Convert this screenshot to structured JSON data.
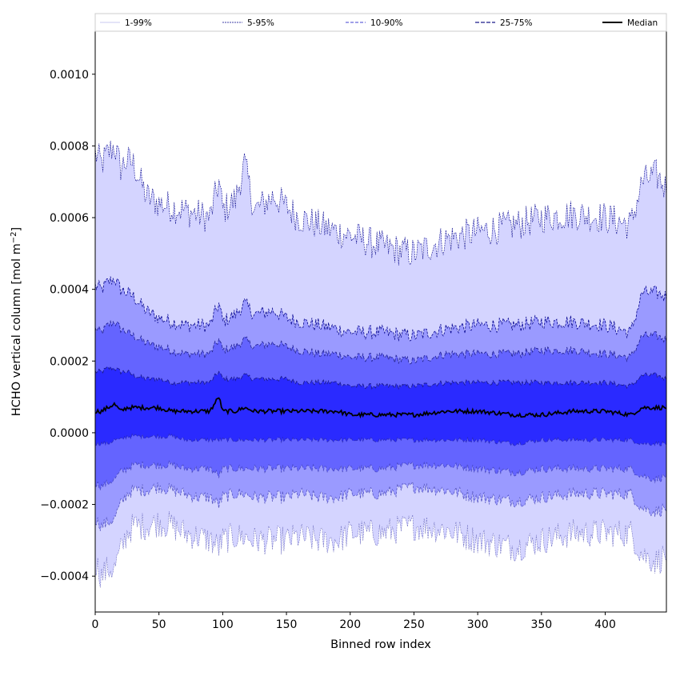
{
  "chart_data": {
    "type": "area",
    "xlabel": "Binned row index",
    "ylabel_main": "HCHO vertical column [mol m",
    "ylabel_sup": "−2",
    "ylabel_end": "]",
    "xlim": [
      0,
      448
    ],
    "ylim": [
      -0.0005,
      0.00112
    ],
    "x_ticks": [
      0,
      50,
      100,
      150,
      200,
      250,
      300,
      350,
      400
    ],
    "x_tick_labels": [
      "0",
      "50",
      "100",
      "150",
      "200",
      "250",
      "300",
      "350",
      "400"
    ],
    "y_ticks": [
      -0.0004,
      -0.0002,
      0.0,
      0.0002,
      0.0004,
      0.0006,
      0.0008,
      0.001
    ],
    "y_tick_labels": [
      "−0.0004",
      "−0.0002",
      "0.0000",
      "0.0002",
      "0.0004",
      "0.0006",
      "0.0008",
      "0.0010"
    ],
    "legend": {
      "placement": "top, above plot, expanded across",
      "entries": [
        "1-99%",
        "5-95%",
        "10-90%",
        "25-75%",
        "Median"
      ]
    },
    "colors": {
      "band_1_99": "#d4d4ff",
      "band_5_95": "#9a9aff",
      "band_10_90": "#6464ff",
      "band_25_75": "#2a2aff",
      "line_1_99": "#c8c8f0",
      "line_5_95": "#00008b",
      "line_10_90": "#4040d0",
      "line_25_75": "#1a1a8a",
      "median": "#000000"
    },
    "x": [
      0,
      5,
      10,
      15,
      20,
      25,
      30,
      40,
      50,
      60,
      70,
      80,
      90,
      97,
      100,
      110,
      117,
      125,
      140,
      150,
      160,
      175,
      190,
      200,
      225,
      250,
      275,
      300,
      330,
      350,
      375,
      400,
      420,
      429,
      440,
      448
    ],
    "series": [
      {
        "name": "1-99%",
        "upper": [
          0.00078,
          0.00075,
          0.00078,
          0.0008,
          0.00074,
          0.00076,
          0.00075,
          0.00066,
          0.00064,
          0.00063,
          0.00062,
          0.00061,
          0.0006,
          0.0007,
          0.00062,
          0.00065,
          0.00075,
          0.00062,
          0.00066,
          0.00063,
          0.0006,
          0.00058,
          0.00056,
          0.00055,
          0.00052,
          0.0005,
          0.00054,
          0.00056,
          0.00058,
          0.0006,
          0.00061,
          0.0006,
          0.00058,
          0.0007,
          0.00072,
          0.00068
        ],
        "lower": [
          -0.00036,
          -0.0004,
          -0.00038,
          -0.00038,
          -0.00033,
          -0.00028,
          -0.00026,
          -0.00026,
          -0.00025,
          -0.00026,
          -0.00028,
          -0.00029,
          -0.0003,
          -0.00032,
          -0.0003,
          -0.00029,
          -0.00029,
          -0.0003,
          -0.0003,
          -0.0003,
          -0.00029,
          -0.0003,
          -0.0003,
          -0.00028,
          -0.00028,
          -0.00026,
          -0.00027,
          -0.0003,
          -0.00032,
          -0.0003,
          -0.00028,
          -0.00028,
          -0.00028,
          -0.00034,
          -0.00036,
          -0.00034
        ]
      },
      {
        "name": "5-95%",
        "upper": [
          0.00041,
          0.0004,
          0.00042,
          0.00043,
          0.0004,
          0.00039,
          0.00038,
          0.00034,
          0.00032,
          0.00031,
          0.0003,
          0.0003,
          0.0003,
          0.00036,
          0.00031,
          0.00033,
          0.00036,
          0.00033,
          0.00034,
          0.00032,
          0.00031,
          0.0003,
          0.00029,
          0.00028,
          0.00028,
          0.00027,
          0.00029,
          0.0003,
          0.0003,
          0.00031,
          0.00031,
          0.0003,
          0.00028,
          0.00039,
          0.00039,
          0.00038
        ],
        "lower": [
          -0.00024,
          -0.00026,
          -0.00025,
          -0.00024,
          -0.0002,
          -0.00017,
          -0.00016,
          -0.00016,
          -0.00015,
          -0.00016,
          -0.00017,
          -0.00018,
          -0.00018,
          -0.0002,
          -0.00018,
          -0.00017,
          -0.00017,
          -0.00018,
          -0.00018,
          -0.00018,
          -0.00017,
          -0.00018,
          -0.00018,
          -0.00017,
          -0.00017,
          -0.00015,
          -0.00016,
          -0.00018,
          -0.00019,
          -0.00018,
          -0.00017,
          -0.00017,
          -0.00017,
          -0.00021,
          -0.00022,
          -0.00021
        ]
      },
      {
        "name": "10-90%",
        "upper": [
          0.00029,
          0.00028,
          0.0003,
          0.00031,
          0.00029,
          0.00028,
          0.00027,
          0.00025,
          0.00024,
          0.00023,
          0.00022,
          0.00022,
          0.00022,
          0.00026,
          0.00023,
          0.00024,
          0.00026,
          0.00024,
          0.00025,
          0.00024,
          0.00023,
          0.00022,
          0.00022,
          0.00021,
          0.00021,
          0.0002,
          0.00022,
          0.00022,
          0.00022,
          0.00023,
          0.00023,
          0.00022,
          0.00021,
          0.00027,
          0.00027,
          0.00026
        ],
        "lower": [
          -0.00014,
          -0.00015,
          -0.00014,
          -0.00013,
          -0.00011,
          -0.0001,
          -9e-05,
          -9e-05,
          -9e-05,
          -9e-05,
          -0.0001,
          -0.0001,
          -0.0001,
          -0.00012,
          -0.0001,
          -0.0001,
          -0.0001,
          -0.0001,
          -0.0001,
          -0.0001,
          -0.0001,
          -0.0001,
          -0.0001,
          -0.0001,
          -0.0001,
          -9e-05,
          -9e-05,
          -0.0001,
          -0.00011,
          -0.0001,
          -0.0001,
          -0.0001,
          -0.0001,
          -0.00012,
          -0.00013,
          -0.00012
        ]
      },
      {
        "name": "25-75%",
        "upper": [
          0.00017,
          0.00017,
          0.00018,
          0.00018,
          0.00017,
          0.00017,
          0.00016,
          0.00015,
          0.00015,
          0.00014,
          0.00014,
          0.00014,
          0.00014,
          0.00017,
          0.00015,
          0.00015,
          0.00016,
          0.00015,
          0.00015,
          0.00015,
          0.00014,
          0.00014,
          0.00014,
          0.00013,
          0.00013,
          0.00013,
          0.00014,
          0.00014,
          0.00014,
          0.00014,
          0.00014,
          0.00014,
          0.00013,
          0.00016,
          0.00016,
          0.00015
        ],
        "lower": [
          -3e-05,
          -3e-05,
          -3e-05,
          -2e-05,
          -2e-05,
          -1e-05,
          -1e-05,
          -1e-05,
          -1e-05,
          -1e-05,
          -2e-05,
          -2e-05,
          -2e-05,
          -2e-05,
          -2e-05,
          -2e-05,
          -2e-05,
          -2e-05,
          -2e-05,
          -2e-05,
          -2e-05,
          -2e-05,
          -2e-05,
          -2e-05,
          -2e-05,
          -2e-05,
          -2e-05,
          -2e-05,
          -3e-05,
          -2e-05,
          -2e-05,
          -2e-05,
          -2e-05,
          -3e-05,
          -3e-05,
          -3e-05
        ]
      },
      {
        "name": "Median",
        "values": [
          6e-05,
          6e-05,
          7e-05,
          8e-05,
          6e-05,
          7e-05,
          7e-05,
          7e-05,
          7e-05,
          6e-05,
          6e-05,
          6e-05,
          6e-05,
          0.0001,
          6e-05,
          6e-05,
          7e-05,
          6e-05,
          6e-05,
          6e-05,
          6e-05,
          6e-05,
          6e-05,
          5e-05,
          5e-05,
          5e-05,
          6e-05,
          6e-05,
          5e-05,
          5e-05,
          6e-05,
          6e-05,
          5e-05,
          7e-05,
          7e-05,
          7e-05
        ]
      }
    ]
  }
}
